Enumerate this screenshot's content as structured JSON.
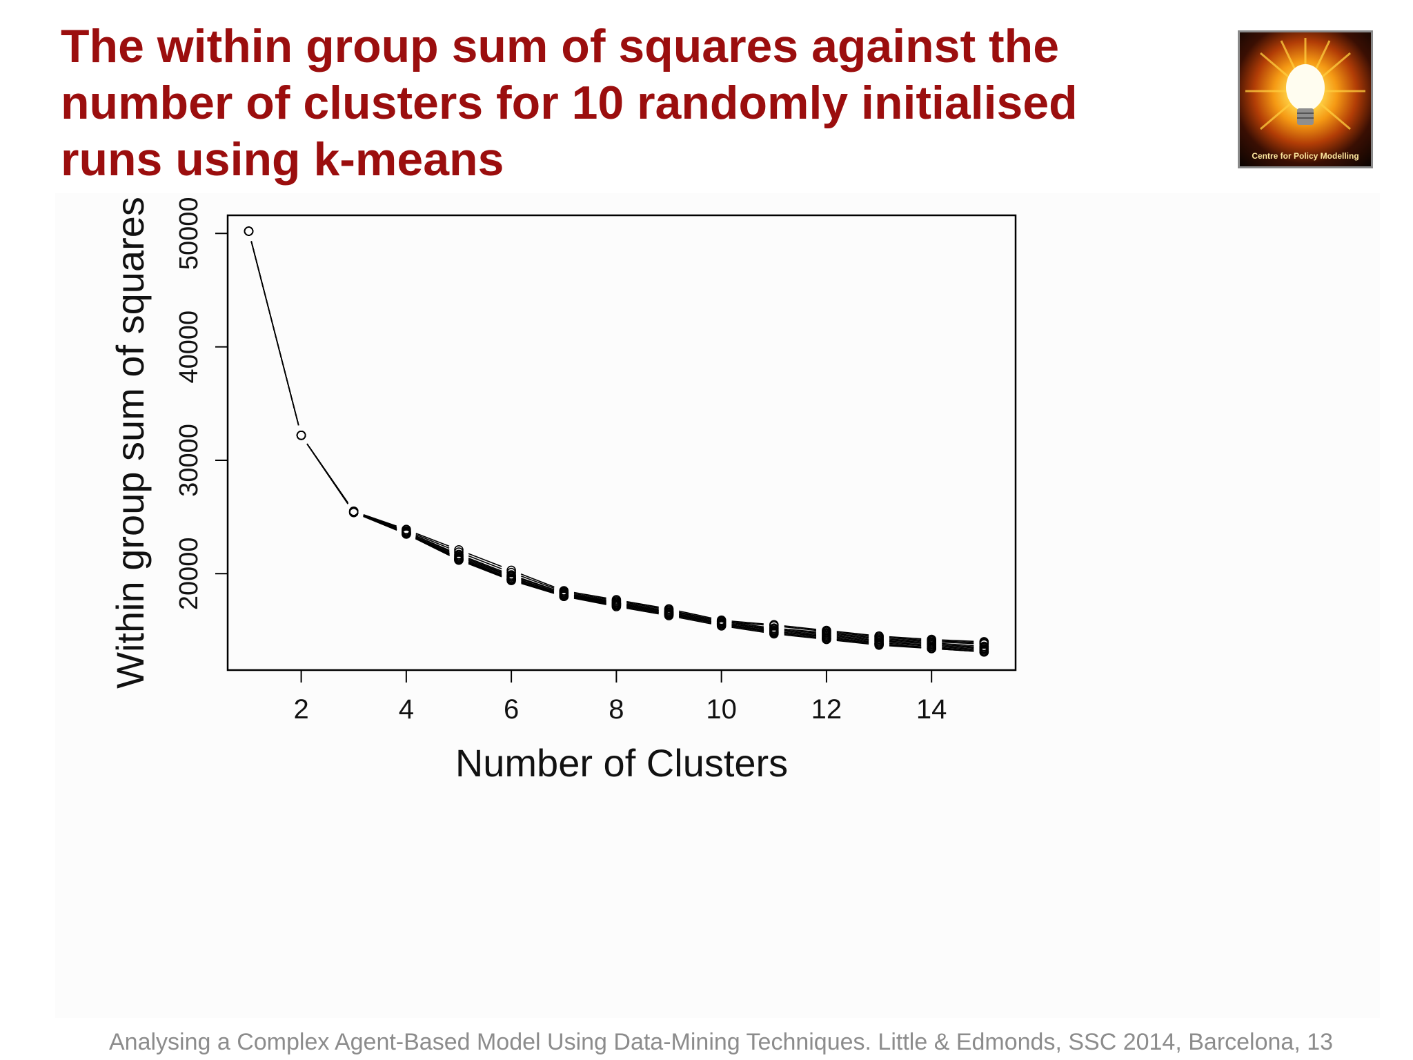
{
  "slide": {
    "title_lines": [
      "The within group sum of squares against the",
      "number of clusters for 10 randomly initialised",
      "runs using k-means"
    ],
    "footer": "Analysing a Complex Agent-Based Model  Using Data-Mining Techniques. Little & Edmonds, SSC 2014, Barcelona, 13",
    "logo_text": "Centre for Policy Modelling",
    "title_color": "#9b0e0e"
  },
  "chart_data": {
    "type": "line",
    "xlabel": "Number of Clusters",
    "ylabel": "Within group sum of squares",
    "xlim": [
      0.6,
      15.6
    ],
    "ylim": [
      11500,
      51600
    ],
    "xticks": [
      2,
      4,
      6,
      8,
      10,
      12,
      14
    ],
    "yticks": [
      20000,
      30000,
      40000,
      50000
    ],
    "grid": false,
    "markers": "open-circle",
    "x": [
      1,
      2,
      3,
      4,
      5,
      6,
      7,
      8,
      9,
      10,
      11,
      12,
      13,
      14,
      15
    ],
    "series": [
      {
        "values": [
          50200,
          32200,
          25500,
          23900,
          22100,
          20300,
          18500,
          17700,
          16900,
          15900,
          15500,
          15000,
          14500,
          14200,
          14000
        ]
      },
      {
        "values": [
          50200,
          32200,
          25500,
          23800,
          21900,
          20100,
          18400,
          17600,
          16800,
          15800,
          15400,
          14900,
          14400,
          14100,
          13900
        ]
      },
      {
        "values": [
          50200,
          32200,
          25500,
          23700,
          21700,
          19900,
          18300,
          17500,
          16700,
          15800,
          15200,
          14800,
          14300,
          14000,
          13800
        ]
      },
      {
        "values": [
          50200,
          32200,
          25500,
          23700,
          21600,
          19800,
          18300,
          17400,
          16600,
          15700,
          15100,
          14700,
          14200,
          13900,
          13600
        ]
      },
      {
        "values": [
          50200,
          32200,
          25500,
          23600,
          21500,
          19700,
          18200,
          17400,
          16600,
          15700,
          15000,
          14600,
          14100,
          13800,
          13500
        ]
      },
      {
        "values": [
          50200,
          32200,
          25500,
          23600,
          21400,
          19600,
          18200,
          17300,
          16500,
          15600,
          14900,
          14500,
          14000,
          13700,
          13400
        ]
      },
      {
        "values": [
          50200,
          32200,
          25400,
          23600,
          21300,
          19500,
          18100,
          17300,
          16500,
          15600,
          14900,
          14400,
          13900,
          13600,
          13300
        ]
      },
      {
        "values": [
          50200,
          32200,
          25400,
          23500,
          21300,
          19500,
          18100,
          17200,
          16400,
          15500,
          14800,
          14300,
          13800,
          13500,
          13200
        ]
      },
      {
        "values": [
          50200,
          32200,
          25400,
          23500,
          21200,
          19500,
          18000,
          17200,
          16400,
          15500,
          14800,
          14300,
          13800,
          13400,
          13100
        ]
      },
      {
        "values": [
          50200,
          32200,
          25400,
          23500,
          21200,
          19400,
          18000,
          17100,
          16300,
          15400,
          14700,
          14200,
          13700,
          13400,
          13100
        ]
      }
    ]
  }
}
